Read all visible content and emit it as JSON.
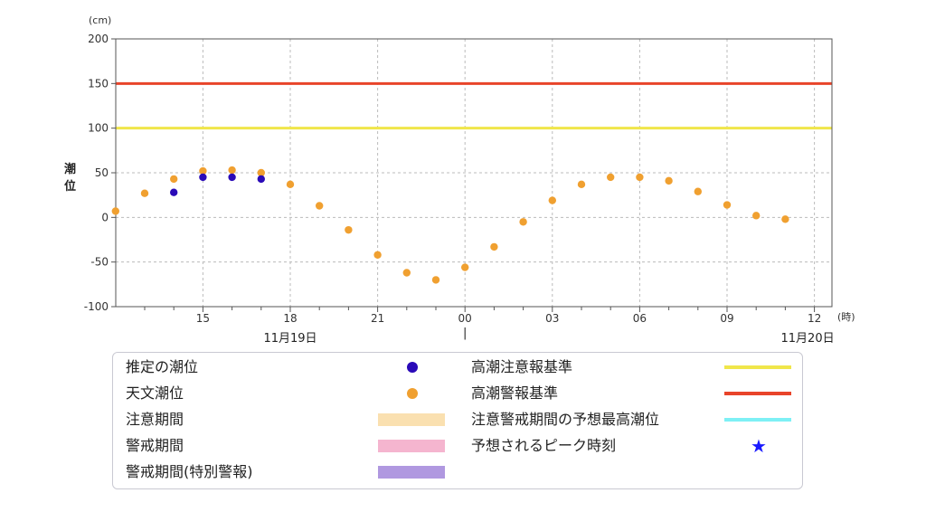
{
  "chart_data": {
    "type": "scatter",
    "title": "",
    "ylabel": "潮位",
    "y_unit": "(cm)",
    "x_unit": "(時)",
    "ylim": [
      -100,
      200
    ],
    "yticks": [
      200,
      150,
      100,
      50,
      0,
      -50,
      -100
    ],
    "x_ticks": [
      "15",
      "18",
      "21",
      "00",
      "03",
      "06",
      "09",
      "12"
    ],
    "date_labels": [
      "11月19日",
      "|",
      "11月20日"
    ],
    "x_start": "11月19日 12時",
    "x_end": "11月20日 12時",
    "thresholds": [
      {
        "name": "高潮警報基準",
        "value": 150,
        "color": "#e8442a"
      },
      {
        "name": "高潮注意報基準",
        "value": 100,
        "color": "#f0e64a"
      }
    ],
    "series": [
      {
        "name": "天文潮位",
        "color": "#f0a030",
        "x": [
          "13:00",
          "14:00",
          "15:00",
          "16:00",
          "17:00",
          "18:00",
          "19:00",
          "20:00",
          "21:00",
          "22:00",
          "23:00",
          "00:00",
          "01:00",
          "02:00",
          "03:00",
          "04:00",
          "05:00",
          "06:00",
          "07:00",
          "08:00",
          "09:00",
          "10:00",
          "11:00",
          "12:00"
        ],
        "values": [
          27,
          43,
          52,
          53,
          50,
          37,
          13,
          -14,
          -42,
          -62,
          -70,
          -56,
          -33,
          -5,
          19,
          37,
          45,
          45,
          41,
          29,
          14,
          2,
          -2,
          7
        ]
      },
      {
        "name": "推定の潮位",
        "color": "#2a0ab8",
        "x": [
          "14:00",
          "15:00",
          "16:00",
          "17:00"
        ],
        "values": [
          28,
          45,
          45,
          43
        ]
      }
    ],
    "grid": true,
    "legend_position": "bottom"
  },
  "legend": {
    "items": [
      {
        "label": "推定の潮位",
        "symbol": "dot",
        "color": "#2a0ab8"
      },
      {
        "label": "天文潮位",
        "symbol": "dot",
        "color": "#f0a030"
      },
      {
        "label": "注意期間",
        "symbol": "rect",
        "color": "#fae0b0"
      },
      {
        "label": "警戒期間",
        "symbol": "rect",
        "color": "#f5b5cf"
      },
      {
        "label": "警戒期間(特別警報)",
        "symbol": "rect",
        "color": "#b098e0"
      },
      {
        "label": "高潮注意報基準",
        "symbol": "line",
        "color": "#f0e64a"
      },
      {
        "label": "高潮警報基準",
        "symbol": "line",
        "color": "#e8442a"
      },
      {
        "label": "注意警戒期間の予想最高潮位",
        "symbol": "line",
        "color": "#7ef0f5"
      },
      {
        "label": "予想されるピーク時刻",
        "symbol": "star",
        "color": "#1a1aff",
        "glyph": "★"
      }
    ]
  }
}
